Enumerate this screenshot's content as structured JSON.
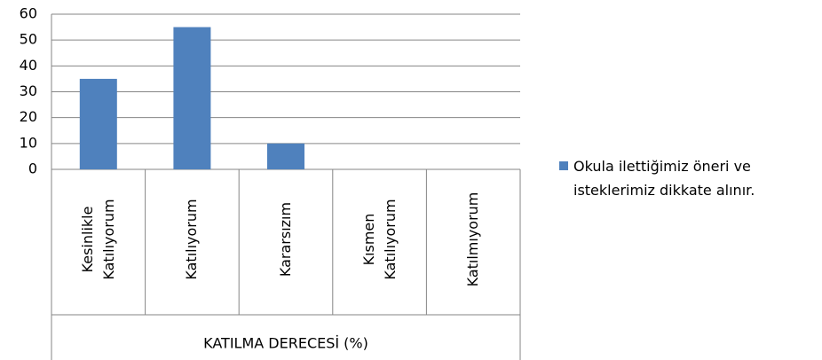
{
  "chart_data": {
    "type": "bar",
    "categories": [
      "Kesinlikle Katılıyorum",
      "Katılıyorum",
      "Kararsızım",
      "Kısmen Katılıyorum",
      "Katılmıyorum"
    ],
    "series": [
      {
        "name": "Okula ilettiğimiz öneri ve isteklerimiz dikkate alınır.",
        "color": "#4f81bd",
        "values": [
          35,
          55,
          10,
          0,
          0
        ]
      }
    ],
    "x_label": "KATILMA DERECESİ (%)",
    "ylim": [
      0,
      60
    ],
    "yticks": [
      0,
      10,
      20,
      30,
      40,
      50,
      60
    ],
    "grid": true,
    "legend": "right"
  }
}
